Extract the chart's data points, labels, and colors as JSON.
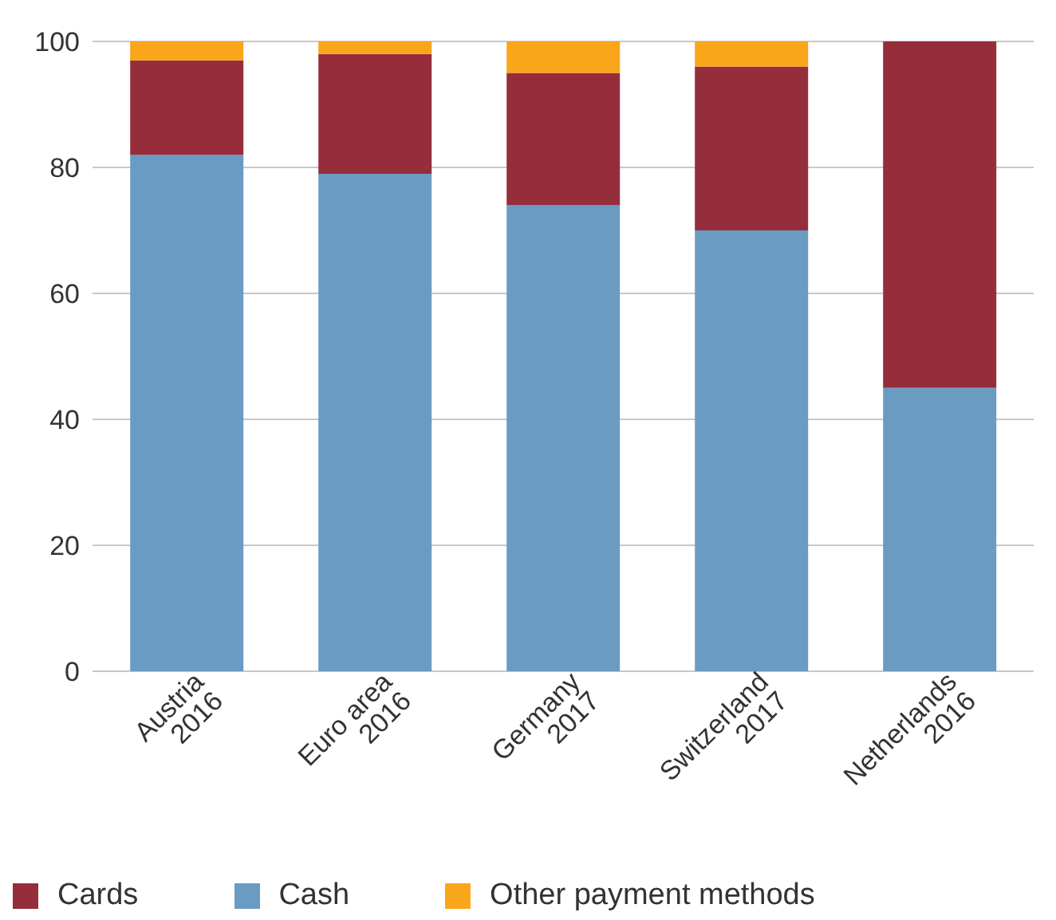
{
  "chart_data": {
    "type": "bar",
    "stacked": true,
    "categories": [
      "Austria\n2016",
      "Euro area\n2016",
      "Germany\n2017",
      "Switzerland\n2017",
      "Netherlands\n2016"
    ],
    "series": [
      {
        "name": "Cash",
        "color": "#6a9bc3",
        "values": [
          82,
          79,
          74,
          70,
          45
        ]
      },
      {
        "name": "Cards",
        "color": "#952d3b",
        "values": [
          15,
          19,
          21,
          26,
          55
        ]
      },
      {
        "name": "Other payment methods",
        "color": "#f9a61a",
        "values": [
          3,
          2,
          5,
          4,
          0
        ]
      }
    ],
    "ylim": [
      0,
      100
    ],
    "yticks": [
      0,
      20,
      40,
      60,
      80,
      100
    ],
    "grid": "y",
    "legend": "bottom"
  }
}
